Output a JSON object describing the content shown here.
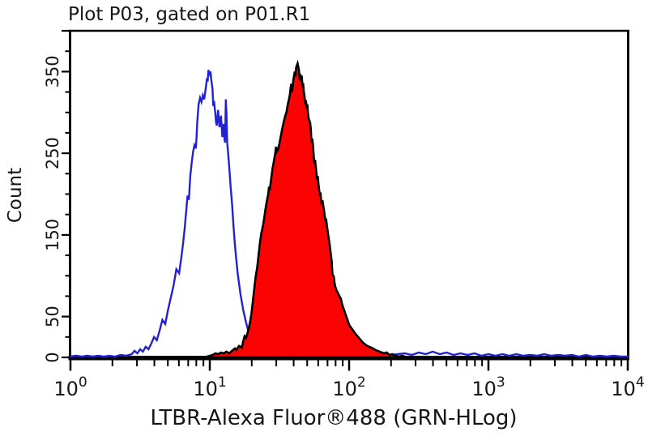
{
  "chart_data": {
    "type": "area",
    "subtype": "flow-cytometry-histogram-overlay",
    "title": "Plot P03, gated on P01.R1",
    "xlabel": "LTBR-Alexa Fluor®488 (GRN-HLog)",
    "ylabel": "Count",
    "x_scale": "log10",
    "xlim": [
      1,
      10000
    ],
    "ylim": [
      0,
      400
    ],
    "grid": false,
    "legend": "none",
    "x_tick_base": "10",
    "x_major_tick_exponents": [
      0,
      1,
      2,
      3,
      4
    ],
    "x_minor_tick_mantissas": [
      2,
      3,
      4,
      5,
      6,
      7,
      8,
      9
    ],
    "y_labeled_ticks": [
      0,
      50,
      150,
      250,
      350
    ],
    "y_unlabeled_major_ticks": [
      400
    ],
    "y_minor_tick_step": 25,
    "colors": {
      "axis": "#000000",
      "text": "#161616",
      "blue_line": "#2222d2",
      "red_fill": "#fb0303",
      "red_outline": "#000000"
    },
    "series": [
      {
        "name": "blue-open-histogram",
        "style": "open",
        "line_color": "#2222d2",
        "fill": "none",
        "peak": {
          "x_log10": 0.99,
          "count": 352
        },
        "points": [
          [
            0.0,
            1
          ],
          [
            0.04,
            2
          ],
          [
            0.08,
            1
          ],
          [
            0.12,
            2
          ],
          [
            0.16,
            1
          ],
          [
            0.2,
            2
          ],
          [
            0.24,
            1
          ],
          [
            0.28,
            2
          ],
          [
            0.32,
            1
          ],
          [
            0.36,
            3
          ],
          [
            0.4,
            2
          ],
          [
            0.44,
            4
          ],
          [
            0.46,
            8
          ],
          [
            0.48,
            5
          ],
          [
            0.5,
            10
          ],
          [
            0.52,
            7
          ],
          [
            0.54,
            13
          ],
          [
            0.56,
            10
          ],
          [
            0.58,
            17
          ],
          [
            0.6,
            25
          ],
          [
            0.62,
            21
          ],
          [
            0.64,
            33
          ],
          [
            0.66,
            46
          ],
          [
            0.68,
            41
          ],
          [
            0.7,
            58
          ],
          [
            0.72,
            73
          ],
          [
            0.74,
            88
          ],
          [
            0.76,
            108
          ],
          [
            0.78,
            103
          ],
          [
            0.8,
            128
          ],
          [
            0.81,
            142
          ],
          [
            0.82,
            158
          ],
          [
            0.83,
            178
          ],
          [
            0.84,
            198
          ],
          [
            0.85,
            193
          ],
          [
            0.86,
            222
          ],
          [
            0.87,
            238
          ],
          [
            0.88,
            252
          ],
          [
            0.89,
            260
          ],
          [
            0.9,
            256
          ],
          [
            0.905,
            270
          ],
          [
            0.91,
            288
          ],
          [
            0.92,
            310
          ],
          [
            0.93,
            318
          ],
          [
            0.94,
            313
          ],
          [
            0.95,
            321
          ],
          [
            0.96,
            316
          ],
          [
            0.97,
            328
          ],
          [
            0.98,
            342
          ],
          [
            0.985,
            338
          ],
          [
            0.99,
            352
          ],
          [
            1.0,
            347
          ],
          [
            1.005,
            350
          ],
          [
            1.01,
            341
          ],
          [
            1.02,
            328
          ],
          [
            1.025,
            308
          ],
          [
            1.03,
            314
          ],
          [
            1.04,
            298
          ],
          [
            1.045,
            288
          ],
          [
            1.05,
            284
          ],
          [
            1.06,
            303
          ],
          [
            1.065,
            290
          ],
          [
            1.07,
            282
          ],
          [
            1.08,
            296
          ],
          [
            1.09,
            270
          ],
          [
            1.1,
            286
          ],
          [
            1.105,
            268
          ],
          [
            1.11,
            263
          ],
          [
            1.115,
            316
          ],
          [
            1.12,
            298
          ],
          [
            1.125,
            263
          ],
          [
            1.13,
            253
          ],
          [
            1.14,
            232
          ],
          [
            1.15,
            208
          ],
          [
            1.16,
            188
          ],
          [
            1.17,
            162
          ],
          [
            1.18,
            138
          ],
          [
            1.19,
            120
          ],
          [
            1.2,
            103
          ],
          [
            1.22,
            78
          ],
          [
            1.24,
            58
          ],
          [
            1.26,
            43
          ],
          [
            1.28,
            30
          ],
          [
            1.3,
            21
          ],
          [
            1.33,
            14
          ],
          [
            1.36,
            9
          ],
          [
            1.4,
            6
          ],
          [
            1.45,
            5
          ],
          [
            1.5,
            4
          ],
          [
            1.55,
            3
          ],
          [
            1.6,
            3
          ],
          [
            1.7,
            2
          ],
          [
            1.8,
            3
          ],
          [
            1.9,
            2
          ],
          [
            2.0,
            3
          ],
          [
            2.1,
            2
          ],
          [
            2.2,
            4
          ],
          [
            2.3,
            3
          ],
          [
            2.4,
            5
          ],
          [
            2.45,
            3
          ],
          [
            2.5,
            6
          ],
          [
            2.55,
            4
          ],
          [
            2.6,
            7
          ],
          [
            2.65,
            4
          ],
          [
            2.7,
            6
          ],
          [
            2.75,
            3
          ],
          [
            2.8,
            5
          ],
          [
            2.85,
            3
          ],
          [
            2.9,
            5
          ],
          [
            2.95,
            2
          ],
          [
            3.0,
            4
          ],
          [
            3.05,
            2
          ],
          [
            3.1,
            4
          ],
          [
            3.15,
            2
          ],
          [
            3.2,
            4
          ],
          [
            3.25,
            2
          ],
          [
            3.3,
            3
          ],
          [
            3.35,
            2
          ],
          [
            3.4,
            4
          ],
          [
            3.45,
            2
          ],
          [
            3.5,
            3
          ],
          [
            3.55,
            2
          ],
          [
            3.6,
            3
          ],
          [
            3.65,
            1
          ],
          [
            3.7,
            3
          ],
          [
            3.75,
            1
          ],
          [
            3.8,
            2
          ],
          [
            3.85,
            1
          ],
          [
            3.9,
            2
          ],
          [
            3.95,
            1
          ],
          [
            4.0,
            1
          ]
        ]
      },
      {
        "name": "red-filled-histogram",
        "style": "filled",
        "line_color": "#000000",
        "fill": "#fb0303",
        "peak": {
          "x_log10": 1.63,
          "count": 360
        },
        "points": [
          [
            0.98,
            1
          ],
          [
            1.0,
            2
          ],
          [
            1.02,
            3
          ],
          [
            1.04,
            5
          ],
          [
            1.06,
            4
          ],
          [
            1.08,
            6
          ],
          [
            1.1,
            5
          ],
          [
            1.12,
            7
          ],
          [
            1.14,
            5
          ],
          [
            1.16,
            8
          ],
          [
            1.18,
            11
          ],
          [
            1.19,
            9
          ],
          [
            1.21,
            14
          ],
          [
            1.23,
            12
          ],
          [
            1.24,
            20
          ],
          [
            1.25,
            26
          ],
          [
            1.26,
            24
          ],
          [
            1.27,
            29
          ],
          [
            1.28,
            36
          ],
          [
            1.29,
            44
          ],
          [
            1.3,
            55
          ],
          [
            1.31,
            70
          ],
          [
            1.32,
            85
          ],
          [
            1.33,
            100
          ],
          [
            1.34,
            110
          ],
          [
            1.35,
            125
          ],
          [
            1.36,
            140
          ],
          [
            1.37,
            152
          ],
          [
            1.38,
            160
          ],
          [
            1.39,
            170
          ],
          [
            1.4,
            182
          ],
          [
            1.41,
            192
          ],
          [
            1.42,
            200
          ],
          [
            1.425,
            209
          ],
          [
            1.43,
            205
          ],
          [
            1.44,
            218
          ],
          [
            1.45,
            231
          ],
          [
            1.46,
            240
          ],
          [
            1.47,
            250
          ],
          [
            1.475,
            258
          ],
          [
            1.48,
            252
          ],
          [
            1.49,
            255
          ],
          [
            1.5,
            262
          ],
          [
            1.51,
            271
          ],
          [
            1.52,
            280
          ],
          [
            1.53,
            288
          ],
          [
            1.54,
            295
          ],
          [
            1.55,
            300
          ],
          [
            1.56,
            310
          ],
          [
            1.57,
            317
          ],
          [
            1.575,
            322
          ],
          [
            1.58,
            330
          ],
          [
            1.585,
            335
          ],
          [
            1.59,
            325
          ],
          [
            1.595,
            332
          ],
          [
            1.6,
            340
          ],
          [
            1.61,
            350
          ],
          [
            1.615,
            344
          ],
          [
            1.62,
            355
          ],
          [
            1.63,
            360
          ],
          [
            1.635,
            356
          ],
          [
            1.64,
            352
          ],
          [
            1.645,
            340
          ],
          [
            1.65,
            347
          ],
          [
            1.655,
            338
          ],
          [
            1.66,
            345
          ],
          [
            1.665,
            332
          ],
          [
            1.67,
            336
          ],
          [
            1.675,
            325
          ],
          [
            1.68,
            320
          ],
          [
            1.685,
            310
          ],
          [
            1.69,
            315
          ],
          [
            1.695,
            305
          ],
          [
            1.7,
            310
          ],
          [
            1.705,
            298
          ],
          [
            1.71,
            292
          ],
          [
            1.72,
            288
          ],
          [
            1.725,
            280
          ],
          [
            1.73,
            263
          ],
          [
            1.735,
            268
          ],
          [
            1.74,
            261
          ],
          [
            1.75,
            238
          ],
          [
            1.755,
            242
          ],
          [
            1.76,
            235
          ],
          [
            1.77,
            218
          ],
          [
            1.775,
            222
          ],
          [
            1.78,
            212
          ],
          [
            1.79,
            198
          ],
          [
            1.795,
            202
          ],
          [
            1.8,
            190
          ],
          [
            1.81,
            191
          ],
          [
            1.82,
            180
          ],
          [
            1.83,
            167
          ],
          [
            1.835,
            170
          ],
          [
            1.84,
            162
          ],
          [
            1.85,
            150
          ],
          [
            1.86,
            139
          ],
          [
            1.87,
            125
          ],
          [
            1.875,
            118
          ],
          [
            1.88,
            102
          ],
          [
            1.89,
            99
          ],
          [
            1.895,
            92
          ],
          [
            1.9,
            87
          ],
          [
            1.91,
            82
          ],
          [
            1.92,
            79
          ],
          [
            1.93,
            75
          ],
          [
            1.94,
            72
          ],
          [
            1.95,
            65
          ],
          [
            1.96,
            60
          ],
          [
            1.97,
            55
          ],
          [
            1.98,
            50
          ],
          [
            1.99,
            45
          ],
          [
            2.0,
            40
          ],
          [
            2.02,
            35
          ],
          [
            2.05,
            28
          ],
          [
            2.08,
            22
          ],
          [
            2.1,
            18
          ],
          [
            2.13,
            14
          ],
          [
            2.16,
            12
          ],
          [
            2.19,
            9
          ],
          [
            2.22,
            7
          ],
          [
            2.25,
            5
          ],
          [
            2.27,
            6
          ],
          [
            2.29,
            3
          ],
          [
            2.31,
            4
          ],
          [
            2.33,
            2
          ],
          [
            2.36,
            1
          ],
          [
            2.38,
            2
          ],
          [
            2.4,
            1
          ]
        ]
      }
    ]
  }
}
